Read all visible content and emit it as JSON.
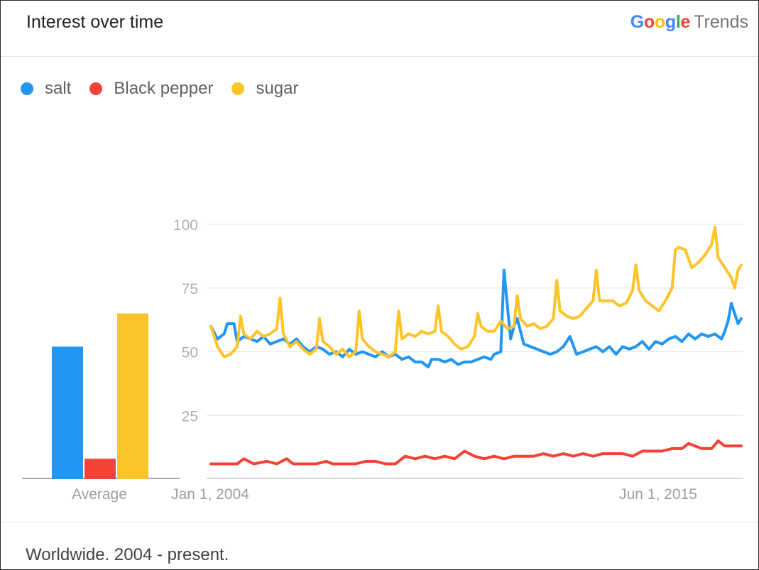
{
  "header": {
    "title": "Interest over time",
    "brand_google": "Google",
    "brand_trends": "Trends"
  },
  "footer": {
    "text": "Worldwide. 2004 - present."
  },
  "colors": {
    "salt": "#2196f3",
    "black_pepper": "#f44336",
    "sugar": "#fdc42a",
    "grid": "#e6e6e6",
    "axis_text": "#9e9e9e"
  },
  "chart_data": [
    {
      "type": "bar",
      "title": "",
      "xlabel": "Average",
      "categories": [
        "salt",
        "Black pepper",
        "sugar"
      ],
      "values": [
        52,
        8,
        65
      ],
      "ylim": [
        0,
        100
      ]
    },
    {
      "type": "line",
      "title": "Interest over time",
      "xlabel": "",
      "ylabel": "",
      "xlim": [
        "2004-01",
        "2017-06"
      ],
      "ylim": [
        0,
        100
      ],
      "yticks": [
        25,
        50,
        75,
        100
      ],
      "xtick_labels": [
        {
          "label": "Jan 1, 2004",
          "date": "2004-01"
        },
        {
          "label": "Jun 1, 2015",
          "date": "2015-06"
        }
      ],
      "grid": true,
      "legend_position": "top-left",
      "series": [
        {
          "name": "salt",
          "points": [
            [
              "2004-01",
              60
            ],
            [
              "2004-03",
              55
            ],
            [
              "2004-05",
              57
            ],
            [
              "2004-06",
              61
            ],
            [
              "2004-08",
              61
            ],
            [
              "2004-09",
              54
            ],
            [
              "2004-11",
              56
            ],
            [
              "2005-01",
              55
            ],
            [
              "2005-03",
              54
            ],
            [
              "2005-05",
              56
            ],
            [
              "2005-07",
              53
            ],
            [
              "2005-09",
              54
            ],
            [
              "2005-11",
              55
            ],
            [
              "2006-01",
              53
            ],
            [
              "2006-03",
              55
            ],
            [
              "2006-05",
              52
            ],
            [
              "2006-07",
              50
            ],
            [
              "2006-09",
              52
            ],
            [
              "2006-11",
              51
            ],
            [
              "2007-01",
              49
            ],
            [
              "2007-03",
              50
            ],
            [
              "2007-05",
              48
            ],
            [
              "2007-07",
              51
            ],
            [
              "2007-09",
              49
            ],
            [
              "2007-11",
              50
            ],
            [
              "2008-01",
              49
            ],
            [
              "2008-03",
              48
            ],
            [
              "2008-05",
              50
            ],
            [
              "2008-07",
              48
            ],
            [
              "2008-09",
              49
            ],
            [
              "2008-11",
              47
            ],
            [
              "2009-01",
              48
            ],
            [
              "2009-03",
              46
            ],
            [
              "2009-05",
              46
            ],
            [
              "2009-07",
              44
            ],
            [
              "2009-08",
              47
            ],
            [
              "2009-10",
              47
            ],
            [
              "2009-12",
              46
            ],
            [
              "2010-02",
              47
            ],
            [
              "2010-04",
              45
            ],
            [
              "2010-06",
              46
            ],
            [
              "2010-08",
              46
            ],
            [
              "2010-10",
              47
            ],
            [
              "2010-12",
              48
            ],
            [
              "2011-02",
              47
            ],
            [
              "2011-03",
              49
            ],
            [
              "2011-05",
              50
            ],
            [
              "2011-06",
              82
            ],
            [
              "2011-07",
              68
            ],
            [
              "2011-08",
              55
            ],
            [
              "2011-09",
              60
            ],
            [
              "2011-10",
              63
            ],
            [
              "2011-12",
              53
            ],
            [
              "2012-02",
              52
            ],
            [
              "2012-04",
              51
            ],
            [
              "2012-06",
              50
            ],
            [
              "2012-08",
              49
            ],
            [
              "2012-10",
              50
            ],
            [
              "2012-12",
              52
            ],
            [
              "2013-02",
              56
            ],
            [
              "2013-04",
              49
            ],
            [
              "2013-06",
              50
            ],
            [
              "2013-08",
              51
            ],
            [
              "2013-10",
              52
            ],
            [
              "2013-12",
              50
            ],
            [
              "2014-02",
              52
            ],
            [
              "2014-04",
              49
            ],
            [
              "2014-06",
              52
            ],
            [
              "2014-08",
              51
            ],
            [
              "2014-10",
              52
            ],
            [
              "2014-12",
              54
            ],
            [
              "2015-02",
              51
            ],
            [
              "2015-04",
              54
            ],
            [
              "2015-06",
              53
            ],
            [
              "2015-08",
              55
            ],
            [
              "2015-10",
              56
            ],
            [
              "2015-12",
              54
            ],
            [
              "2016-02",
              57
            ],
            [
              "2016-04",
              55
            ],
            [
              "2016-06",
              57
            ],
            [
              "2016-08",
              56
            ],
            [
              "2016-10",
              57
            ],
            [
              "2016-12",
              55
            ],
            [
              "2017-01",
              58
            ],
            [
              "2017-02",
              62
            ],
            [
              "2017-03",
              69
            ],
            [
              "2017-04",
              65
            ],
            [
              "2017-05",
              61
            ],
            [
              "2017-06",
              63
            ]
          ]
        },
        {
          "name": "Black pepper",
          "points": [
            [
              "2004-01",
              6
            ],
            [
              "2004-06",
              6
            ],
            [
              "2004-09",
              6
            ],
            [
              "2004-11",
              8
            ],
            [
              "2005-02",
              6
            ],
            [
              "2005-06",
              7
            ],
            [
              "2005-09",
              6
            ],
            [
              "2005-12",
              8
            ],
            [
              "2006-02",
              6
            ],
            [
              "2006-06",
              6
            ],
            [
              "2006-09",
              6
            ],
            [
              "2006-12",
              7
            ],
            [
              "2007-02",
              6
            ],
            [
              "2007-06",
              6
            ],
            [
              "2007-09",
              6
            ],
            [
              "2007-12",
              7
            ],
            [
              "2008-03",
              7
            ],
            [
              "2008-06",
              6
            ],
            [
              "2008-09",
              6
            ],
            [
              "2008-12",
              9
            ],
            [
              "2009-03",
              8
            ],
            [
              "2009-06",
              9
            ],
            [
              "2009-09",
              8
            ],
            [
              "2009-12",
              9
            ],
            [
              "2010-03",
              8
            ],
            [
              "2010-06",
              11
            ],
            [
              "2010-09",
              9
            ],
            [
              "2010-12",
              8
            ],
            [
              "2011-03",
              9
            ],
            [
              "2011-06",
              8
            ],
            [
              "2011-09",
              9
            ],
            [
              "2011-12",
              9
            ],
            [
              "2012-03",
              9
            ],
            [
              "2012-06",
              10
            ],
            [
              "2012-09",
              9
            ],
            [
              "2012-12",
              10
            ],
            [
              "2013-03",
              9
            ],
            [
              "2013-06",
              10
            ],
            [
              "2013-09",
              9
            ],
            [
              "2013-12",
              10
            ],
            [
              "2014-03",
              10
            ],
            [
              "2014-06",
              10
            ],
            [
              "2014-09",
              9
            ],
            [
              "2014-12",
              11
            ],
            [
              "2015-03",
              11
            ],
            [
              "2015-06",
              11
            ],
            [
              "2015-09",
              12
            ],
            [
              "2015-12",
              12
            ],
            [
              "2016-02",
              14
            ],
            [
              "2016-04",
              13
            ],
            [
              "2016-06",
              12
            ],
            [
              "2016-09",
              12
            ],
            [
              "2016-11",
              15
            ],
            [
              "2017-01",
              13
            ],
            [
              "2017-03",
              13
            ],
            [
              "2017-06",
              13
            ]
          ]
        },
        {
          "name": "sugar",
          "points": [
            [
              "2004-01",
              60
            ],
            [
              "2004-03",
              52
            ],
            [
              "2004-05",
              48
            ],
            [
              "2004-07",
              49
            ],
            [
              "2004-09",
              52
            ],
            [
              "2004-10",
              64
            ],
            [
              "2004-11",
              57
            ],
            [
              "2005-01",
              55
            ],
            [
              "2005-03",
              58
            ],
            [
              "2005-05",
              56
            ],
            [
              "2005-07",
              57
            ],
            [
              "2005-09",
              59
            ],
            [
              "2005-10",
              71
            ],
            [
              "2005-11",
              57
            ],
            [
              "2006-01",
              52
            ],
            [
              "2006-03",
              54
            ],
            [
              "2006-05",
              51
            ],
            [
              "2006-07",
              49
            ],
            [
              "2006-09",
              51
            ],
            [
              "2006-10",
              63
            ],
            [
              "2006-11",
              54
            ],
            [
              "2007-01",
              52
            ],
            [
              "2007-03",
              49
            ],
            [
              "2007-05",
              51
            ],
            [
              "2007-07",
              48
            ],
            [
              "2007-09",
              50
            ],
            [
              "2007-10",
              66
            ],
            [
              "2007-11",
              55
            ],
            [
              "2008-01",
              52
            ],
            [
              "2008-03",
              50
            ],
            [
              "2008-05",
              49
            ],
            [
              "2008-07",
              48
            ],
            [
              "2008-09",
              50
            ],
            [
              "2008-10",
              66
            ],
            [
              "2008-11",
              55
            ],
            [
              "2009-01",
              57
            ],
            [
              "2009-03",
              56
            ],
            [
              "2009-05",
              58
            ],
            [
              "2009-07",
              57
            ],
            [
              "2009-09",
              58
            ],
            [
              "2009-10",
              68
            ],
            [
              "2009-11",
              58
            ],
            [
              "2010-01",
              56
            ],
            [
              "2010-03",
              53
            ],
            [
              "2010-05",
              51
            ],
            [
              "2010-07",
              52
            ],
            [
              "2010-09",
              56
            ],
            [
              "2010-10",
              65
            ],
            [
              "2010-11",
              60
            ],
            [
              "2011-01",
              58
            ],
            [
              "2011-03",
              58
            ],
            [
              "2011-05",
              62
            ],
            [
              "2011-07",
              59
            ],
            [
              "2011-09",
              60
            ],
            [
              "2011-10",
              72
            ],
            [
              "2011-11",
              63
            ],
            [
              "2012-01",
              60
            ],
            [
              "2012-03",
              61
            ],
            [
              "2012-05",
              59
            ],
            [
              "2012-07",
              60
            ],
            [
              "2012-09",
              63
            ],
            [
              "2012-10",
              78
            ],
            [
              "2012-11",
              66
            ],
            [
              "2013-01",
              64
            ],
            [
              "2013-03",
              63
            ],
            [
              "2013-05",
              64
            ],
            [
              "2013-07",
              67
            ],
            [
              "2013-09",
              70
            ],
            [
              "2013-10",
              82
            ],
            [
              "2013-11",
              70
            ],
            [
              "2014-01",
              70
            ],
            [
              "2014-03",
              70
            ],
            [
              "2014-05",
              68
            ],
            [
              "2014-07",
              69
            ],
            [
              "2014-09",
              74
            ],
            [
              "2014-10",
              84
            ],
            [
              "2014-11",
              74
            ],
            [
              "2015-01",
              70
            ],
            [
              "2015-03",
              68
            ],
            [
              "2015-05",
              66
            ],
            [
              "2015-07",
              70
            ],
            [
              "2015-09",
              75
            ],
            [
              "2015-10",
              90
            ],
            [
              "2015-11",
              91
            ],
            [
              "2016-01",
              90
            ],
            [
              "2016-03",
              83
            ],
            [
              "2016-05",
              85
            ],
            [
              "2016-07",
              88
            ],
            [
              "2016-09",
              92
            ],
            [
              "2016-10",
              99
            ],
            [
              "2016-11",
              87
            ],
            [
              "2017-01",
              83
            ],
            [
              "2017-03",
              79
            ],
            [
              "2017-04",
              75
            ],
            [
              "2017-05",
              82
            ],
            [
              "2017-06",
              84
            ]
          ]
        }
      ]
    }
  ]
}
